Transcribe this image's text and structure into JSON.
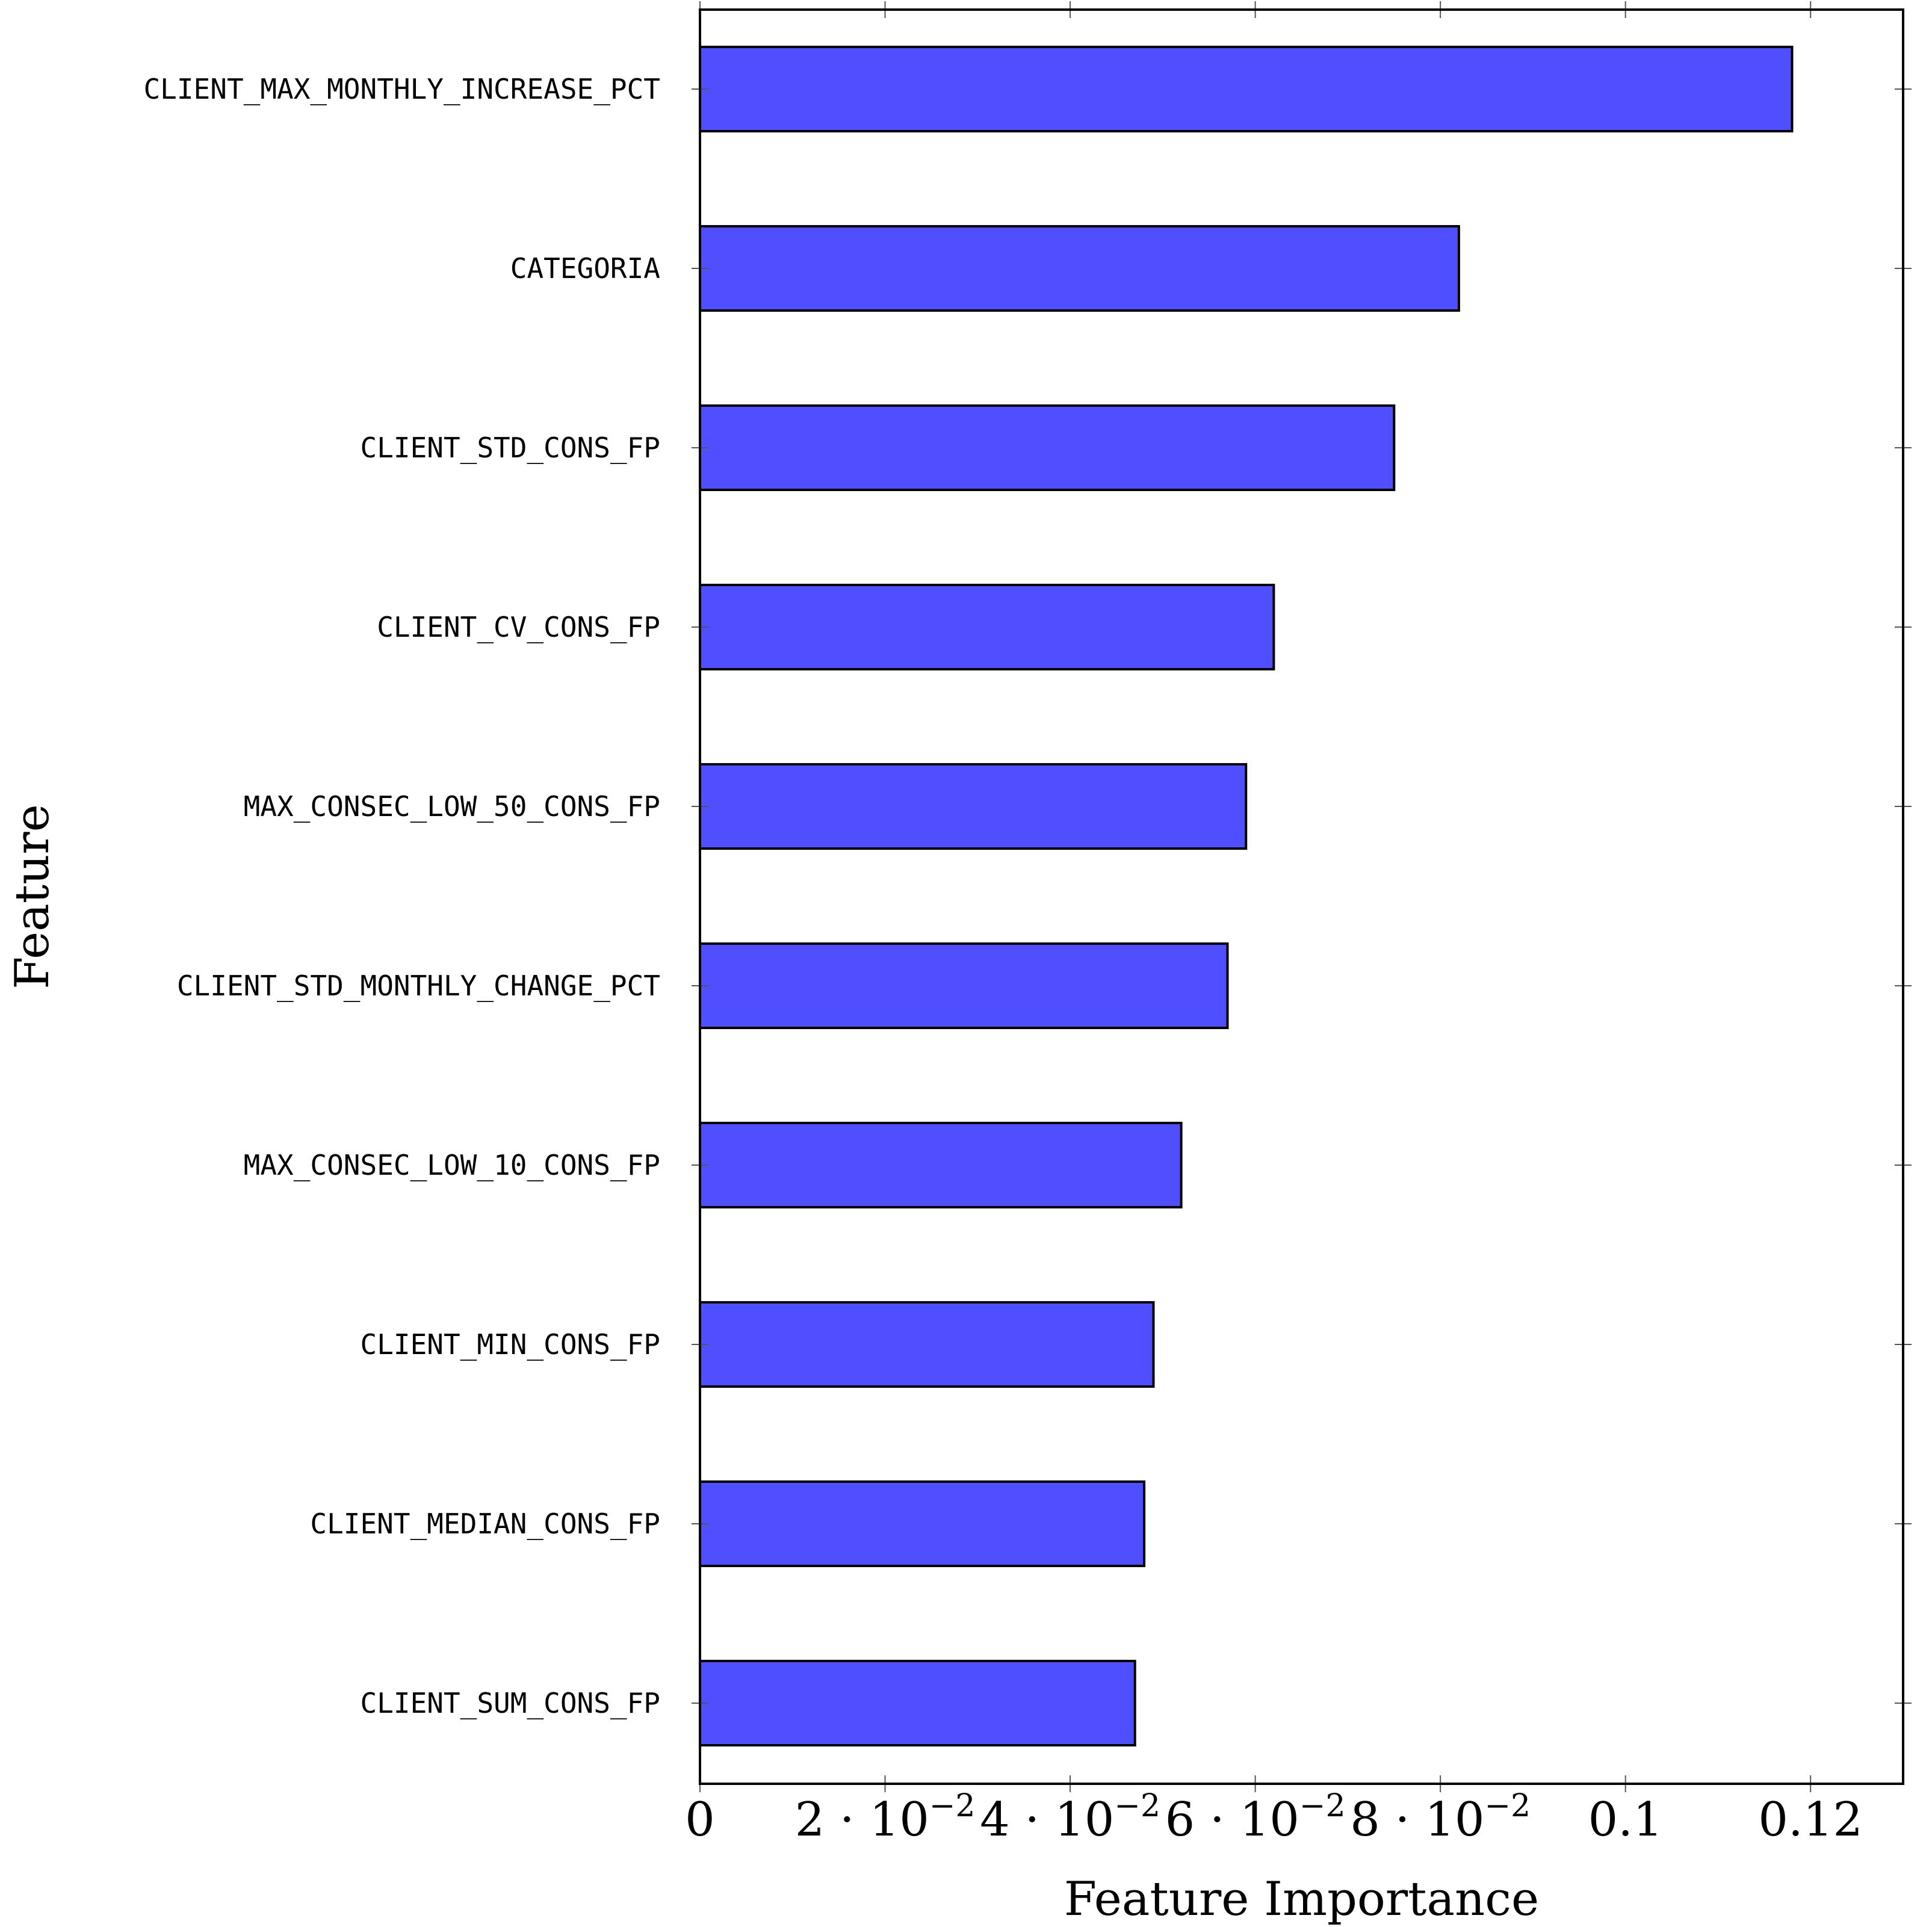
{
  "chart_data": {
    "type": "bar",
    "orientation": "horizontal",
    "xlabel": "Feature Importance",
    "ylabel": "Feature",
    "xlim": [
      0,
      0.13
    ],
    "grid": false,
    "color": "#4f4fff",
    "categories": [
      "CLIENT_MAX_MONTHLY_INCREASE_PCT",
      "CATEGORIA",
      "CLIENT_STD_CONS_FP",
      "CLIENT_CV_CONS_FP",
      "MAX_CONSEC_LOW_50_CONS_FP",
      "CLIENT_STD_MONTHLY_CHANGE_PCT",
      "MAX_CONSEC_LOW_10_CONS_FP",
      "CLIENT_MIN_CONS_FP",
      "CLIENT_MEDIAN_CONS_FP",
      "CLIENT_SUM_CONS_FP"
    ],
    "values": [
      0.118,
      0.082,
      0.075,
      0.062,
      0.059,
      0.057,
      0.052,
      0.049,
      0.048,
      0.047
    ],
    "xticks": [
      {
        "value": 0,
        "base": "0",
        "exp": ""
      },
      {
        "value": 0.02,
        "base": "2 · 10",
        "exp": "−2"
      },
      {
        "value": 0.04,
        "base": "4 · 10",
        "exp": "−2"
      },
      {
        "value": 0.06,
        "base": "6 · 10",
        "exp": "−2"
      },
      {
        "value": 0.08,
        "base": "8 · 10",
        "exp": "−2"
      },
      {
        "value": 0.1,
        "base": "0.1",
        "exp": ""
      },
      {
        "value": 0.12,
        "base": "0.12",
        "exp": ""
      }
    ]
  }
}
